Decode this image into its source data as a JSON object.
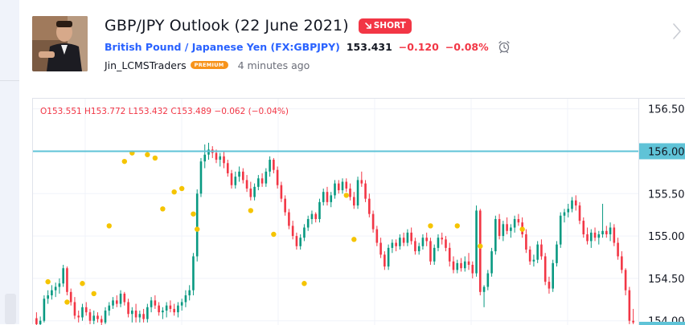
{
  "idea": {
    "title": "GBP/JPY Outlook (22 June 2021)",
    "badge": "SHORT",
    "badge_color": "#f23645",
    "symbol_name": "British Pound / Japanese Yen (FX:GBPJPY)",
    "last_price": "153.431",
    "change": "−0.120",
    "change_percent": "−0.08%",
    "author": "Jin_LCMSTraders",
    "author_badge": "PREMIUM",
    "published": "4 minutes ago",
    "icons": [
      "alarm-clock-icon",
      "chevron-right-icon",
      "arrow-down-right-icon"
    ]
  },
  "chart": {
    "ohlc": {
      "o": "O153.551",
      "h": "H153.772",
      "l": "L153.432",
      "c": "C153.489",
      "chg": "−0.062 (−0.04%)"
    },
    "price_axis_labels": [
      "156.50",
      "156.00",
      "155.50",
      "155.00",
      "154.50",
      "154.00"
    ],
    "highlighted_level": "156.00",
    "colors": {
      "up": "#089981",
      "down": "#f23645",
      "level_line": "#5fc3d7",
      "marker": "#f5c400"
    }
  },
  "chart_data": {
    "type": "candlestick",
    "ylim": [
      153.95,
      156.62
    ],
    "horizontal_line": 156.0,
    "candles": [
      [
        0,
        154.03,
        154.1,
        153.9,
        153.96
      ],
      [
        1,
        153.96,
        154.05,
        153.92,
        154.0
      ],
      [
        2,
        154.0,
        154.3,
        153.98,
        154.26
      ],
      [
        3,
        154.26,
        154.36,
        154.2,
        154.3
      ],
      [
        4,
        154.3,
        154.42,
        154.25,
        154.36
      ],
      [
        5,
        154.36,
        154.45,
        154.28,
        154.4
      ],
      [
        6,
        154.4,
        154.5,
        154.32,
        154.44
      ],
      [
        7,
        154.44,
        154.66,
        154.4,
        154.62
      ],
      [
        8,
        154.62,
        154.64,
        154.3,
        154.34
      ],
      [
        9,
        154.34,
        154.38,
        154.18,
        154.22
      ],
      [
        10,
        154.22,
        154.28,
        154.02,
        154.06
      ],
      [
        11,
        154.06,
        154.12,
        153.98,
        154.04
      ],
      [
        12,
        154.04,
        154.2,
        154.0,
        154.16
      ],
      [
        13,
        154.16,
        154.22,
        154.06,
        154.1
      ],
      [
        14,
        154.1,
        154.14,
        153.96,
        154.0
      ],
      [
        15,
        154.0,
        154.12,
        153.96,
        154.06
      ],
      [
        16,
        154.06,
        154.1,
        153.98,
        154.02
      ],
      [
        17,
        154.02,
        154.06,
        153.94,
        153.98
      ],
      [
        18,
        153.98,
        154.16,
        153.96,
        154.12
      ],
      [
        19,
        154.12,
        154.22,
        154.06,
        154.18
      ],
      [
        20,
        154.18,
        154.28,
        154.14,
        154.24
      ],
      [
        21,
        154.24,
        154.3,
        154.16,
        154.2
      ],
      [
        22,
        154.2,
        154.36,
        154.16,
        154.32
      ],
      [
        23,
        154.32,
        154.34,
        154.18,
        154.22
      ],
      [
        24,
        154.22,
        154.26,
        154.04,
        154.08
      ],
      [
        25,
        154.08,
        154.16,
        153.98,
        154.12
      ],
      [
        26,
        154.12,
        154.2,
        153.98,
        154.04
      ],
      [
        27,
        154.04,
        154.12,
        153.98,
        154.08
      ],
      [
        28,
        154.08,
        154.14,
        153.98,
        154.02
      ],
      [
        29,
        154.02,
        154.2,
        153.98,
        154.16
      ],
      [
        30,
        154.16,
        154.28,
        154.1,
        154.24
      ],
      [
        31,
        154.24,
        154.3,
        154.14,
        154.18
      ],
      [
        32,
        154.18,
        154.22,
        154.06,
        154.1
      ],
      [
        33,
        154.1,
        154.16,
        154.02,
        154.12
      ],
      [
        34,
        154.12,
        154.22,
        154.04,
        154.18
      ],
      [
        35,
        154.18,
        154.24,
        154.1,
        154.14
      ],
      [
        36,
        154.14,
        154.2,
        154.06,
        154.1
      ],
      [
        37,
        154.1,
        154.22,
        154.04,
        154.18
      ],
      [
        38,
        154.18,
        154.26,
        154.12,
        154.22
      ],
      [
        39,
        154.22,
        154.36,
        154.16,
        154.3
      ],
      [
        40,
        154.3,
        154.42,
        154.24,
        154.36
      ],
      [
        41,
        154.36,
        154.8,
        154.3,
        154.76
      ],
      [
        42,
        154.76,
        155.55,
        154.7,
        155.5
      ],
      [
        43,
        155.5,
        155.92,
        155.46,
        155.88
      ],
      [
        44,
        155.88,
        156.08,
        155.8,
        155.96
      ],
      [
        45,
        155.96,
        156.1,
        155.9,
        156.02
      ],
      [
        46,
        156.02,
        156.06,
        155.92,
        155.98
      ],
      [
        47,
        155.98,
        156.02,
        155.86,
        155.9
      ],
      [
        48,
        155.9,
        155.98,
        155.82,
        155.94
      ],
      [
        49,
        155.94,
        156.0,
        155.8,
        155.86
      ],
      [
        50,
        155.86,
        155.9,
        155.7,
        155.74
      ],
      [
        51,
        155.74,
        155.78,
        155.56,
        155.6
      ],
      [
        52,
        155.6,
        155.76,
        155.56,
        155.7
      ],
      [
        53,
        155.7,
        155.82,
        155.64,
        155.76
      ],
      [
        54,
        155.76,
        155.8,
        155.62,
        155.66
      ],
      [
        55,
        155.66,
        155.72,
        155.52,
        155.56
      ],
      [
        56,
        155.56,
        155.64,
        155.42,
        155.46
      ],
      [
        57,
        155.46,
        155.62,
        155.42,
        155.58
      ],
      [
        58,
        155.58,
        155.72,
        155.54,
        155.68
      ],
      [
        59,
        155.68,
        155.74,
        155.58,
        155.62
      ],
      [
        60,
        155.62,
        155.8,
        155.58,
        155.76
      ],
      [
        61,
        155.76,
        155.94,
        155.7,
        155.9
      ],
      [
        62,
        155.9,
        155.92,
        155.74,
        155.78
      ],
      [
        63,
        155.78,
        155.82,
        155.56,
        155.6
      ],
      [
        64,
        155.6,
        155.64,
        155.4,
        155.44
      ],
      [
        65,
        155.44,
        155.48,
        155.24,
        155.28
      ],
      [
        66,
        155.28,
        155.32,
        155.08,
        155.12
      ],
      [
        67,
        155.12,
        155.18,
        154.96,
        155.0
      ],
      [
        68,
        155.0,
        155.04,
        154.84,
        154.88
      ],
      [
        69,
        154.88,
        155.02,
        154.84,
        154.98
      ],
      [
        70,
        154.98,
        155.14,
        154.94,
        155.1
      ],
      [
        71,
        155.1,
        155.24,
        155.06,
        155.2
      ],
      [
        72,
        155.2,
        155.3,
        155.14,
        155.26
      ],
      [
        73,
        155.26,
        155.28,
        155.16,
        155.2
      ],
      [
        74,
        155.2,
        155.44,
        155.16,
        155.4
      ],
      [
        75,
        155.4,
        155.56,
        155.36,
        155.52
      ],
      [
        76,
        155.52,
        155.58,
        155.36,
        155.4
      ],
      [
        77,
        155.4,
        155.52,
        155.34,
        155.48
      ],
      [
        78,
        155.48,
        155.66,
        155.44,
        155.62
      ],
      [
        79,
        155.62,
        155.66,
        155.5,
        155.54
      ],
      [
        80,
        155.54,
        155.68,
        155.5,
        155.64
      ],
      [
        81,
        155.64,
        155.68,
        155.52,
        155.56
      ],
      [
        82,
        155.56,
        155.62,
        155.42,
        155.46
      ],
      [
        83,
        155.46,
        155.52,
        155.32,
        155.36
      ],
      [
        84,
        155.36,
        155.7,
        155.32,
        155.66
      ],
      [
        85,
        155.66,
        155.76,
        155.58,
        155.62
      ],
      [
        86,
        155.62,
        155.66,
        155.4,
        155.44
      ],
      [
        87,
        155.44,
        155.5,
        155.22,
        155.26
      ],
      [
        88,
        155.26,
        155.3,
        155.04,
        155.08
      ],
      [
        89,
        155.08,
        155.12,
        154.88,
        154.92
      ],
      [
        90,
        154.92,
        154.98,
        154.74,
        154.78
      ],
      [
        91,
        154.78,
        154.82,
        154.6,
        154.64
      ],
      [
        92,
        154.64,
        154.9,
        154.6,
        154.86
      ],
      [
        93,
        154.86,
        154.96,
        154.8,
        154.92
      ],
      [
        94,
        154.92,
        154.96,
        154.82,
        154.88
      ],
      [
        95,
        154.88,
        155.02,
        154.84,
        154.98
      ],
      [
        96,
        154.98,
        155.04,
        154.88,
        154.92
      ],
      [
        97,
        154.92,
        155.08,
        154.88,
        155.04
      ],
      [
        98,
        155.04,
        155.1,
        154.9,
        154.94
      ],
      [
        99,
        154.94,
        154.98,
        154.78,
        154.82
      ],
      [
        100,
        154.82,
        154.92,
        154.78,
        154.88
      ],
      [
        101,
        154.88,
        155.02,
        154.84,
        154.98
      ],
      [
        102,
        154.98,
        155.04,
        154.88,
        154.94
      ],
      [
        103,
        154.94,
        154.98,
        154.66,
        154.7
      ],
      [
        104,
        154.7,
        154.9,
        154.66,
        154.86
      ],
      [
        105,
        154.86,
        155.02,
        154.82,
        154.98
      ],
      [
        106,
        154.98,
        155.04,
        154.9,
        154.96
      ],
      [
        107,
        154.96,
        155.0,
        154.82,
        154.86
      ],
      [
        108,
        154.86,
        154.92,
        154.64,
        154.7
      ],
      [
        109,
        154.7,
        154.76,
        154.56,
        154.6
      ],
      [
        110,
        154.6,
        154.72,
        154.56,
        154.68
      ],
      [
        111,
        154.68,
        154.74,
        154.58,
        154.62
      ],
      [
        112,
        154.62,
        154.76,
        154.58,
        154.7
      ],
      [
        113,
        154.7,
        154.8,
        154.6,
        154.66
      ],
      [
        114,
        154.66,
        154.7,
        154.5,
        154.56
      ],
      [
        115,
        154.56,
        155.36,
        154.52,
        155.3
      ],
      [
        116,
        155.3,
        155.32,
        154.3,
        154.34
      ],
      [
        117,
        154.34,
        154.42,
        154.16,
        154.4
      ],
      [
        118,
        154.4,
        154.6,
        154.36,
        154.56
      ],
      [
        119,
        154.56,
        154.86,
        154.52,
        154.82
      ],
      [
        120,
        154.82,
        155.24,
        154.78,
        155.2
      ],
      [
        121,
        155.2,
        155.26,
        154.96,
        155.0
      ],
      [
        122,
        155.0,
        155.18,
        154.94,
        155.14
      ],
      [
        123,
        155.14,
        155.22,
        155.02,
        155.06
      ],
      [
        124,
        155.06,
        155.14,
        154.98,
        155.1
      ],
      [
        125,
        155.1,
        155.24,
        155.04,
        155.2
      ],
      [
        126,
        155.2,
        155.26,
        155.12,
        155.16
      ],
      [
        127,
        155.16,
        155.22,
        154.98,
        155.02
      ],
      [
        128,
        155.02,
        155.08,
        154.8,
        154.84
      ],
      [
        129,
        154.84,
        154.88,
        154.66,
        154.7
      ],
      [
        130,
        154.7,
        154.78,
        154.64,
        154.72
      ],
      [
        131,
        154.72,
        154.94,
        154.68,
        154.9
      ],
      [
        132,
        154.9,
        154.96,
        154.72,
        154.76
      ],
      [
        133,
        154.76,
        154.8,
        154.42,
        154.46
      ],
      [
        134,
        154.46,
        154.52,
        154.32,
        154.38
      ],
      [
        135,
        154.38,
        154.72,
        154.34,
        154.68
      ],
      [
        136,
        154.68,
        154.94,
        154.64,
        154.9
      ],
      [
        137,
        154.9,
        155.28,
        154.86,
        155.24
      ],
      [
        138,
        155.24,
        155.32,
        155.16,
        155.28
      ],
      [
        139,
        155.28,
        155.38,
        155.22,
        155.32
      ],
      [
        140,
        155.32,
        155.46,
        155.28,
        155.42
      ],
      [
        141,
        155.42,
        155.48,
        155.3,
        155.36
      ],
      [
        142,
        155.36,
        155.4,
        155.14,
        155.18
      ],
      [
        143,
        155.18,
        155.22,
        154.98,
        155.02
      ],
      [
        144,
        155.02,
        155.1,
        154.9,
        154.94
      ],
      [
        145,
        154.94,
        155.08,
        154.86,
        155.04
      ],
      [
        146,
        155.04,
        155.1,
        154.94,
        154.98
      ],
      [
        147,
        154.98,
        155.06,
        154.9,
        155.02
      ],
      [
        148,
        155.02,
        155.38,
        154.98,
        155.06
      ],
      [
        149,
        155.06,
        155.12,
        154.98,
        155.02
      ],
      [
        150,
        155.02,
        155.16,
        154.94,
        155.1
      ],
      [
        151,
        155.1,
        155.14,
        154.88,
        154.92
      ],
      [
        152,
        154.92,
        154.98,
        154.72,
        154.76
      ],
      [
        153,
        154.76,
        154.82,
        154.56,
        154.6
      ],
      [
        154,
        154.6,
        154.62,
        154.3,
        154.36
      ],
      [
        155,
        154.36,
        154.4,
        153.96,
        154.0
      ],
      [
        156,
        154.0,
        154.14,
        153.96,
        153.98
      ]
    ],
    "markers": [
      [
        3,
        154.46
      ],
      [
        8,
        154.22
      ],
      [
        12,
        154.44
      ],
      [
        15,
        154.32
      ],
      [
        19,
        155.12
      ],
      [
        23,
        155.88
      ],
      [
        25,
        155.98
      ],
      [
        29,
        155.96
      ],
      [
        31,
        155.92
      ],
      [
        33,
        155.32
      ],
      [
        36,
        155.52
      ],
      [
        38,
        155.56
      ],
      [
        41,
        155.26
      ],
      [
        42,
        155.08
      ],
      [
        56,
        155.3
      ],
      [
        62,
        155.02
      ],
      [
        70,
        154.44
      ],
      [
        81,
        155.48
      ],
      [
        83,
        154.96
      ],
      [
        103,
        155.12
      ],
      [
        110,
        155.12
      ],
      [
        116,
        154.88
      ],
      [
        127,
        155.08
      ]
    ]
  }
}
